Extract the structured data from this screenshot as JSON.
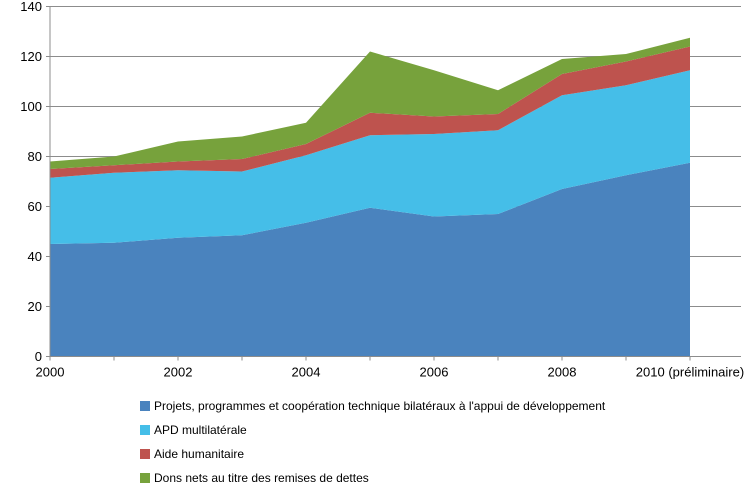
{
  "chart_data": {
    "type": "area",
    "stacked": true,
    "categories": [
      "2000",
      "2001",
      "2002",
      "2003",
      "2004",
      "2005",
      "2006",
      "2007",
      "2008",
      "2009",
      "2010 (préliminaire)"
    ],
    "xtick_labels": [
      "2000",
      "2002",
      "2004",
      "2006",
      "2008",
      "2010 (préliminaire)"
    ],
    "xtick_positions": [
      0,
      2,
      4,
      6,
      8,
      10
    ],
    "series": [
      {
        "name": "Projets, programmes et coopération technique bilatéraux à l'appui de développement",
        "color": "#4A83BE",
        "values": [
          45,
          45.5,
          47.5,
          48.5,
          53.5,
          59.5,
          56,
          57,
          67,
          72.5,
          77.5
        ]
      },
      {
        "name": "APD multilatérale",
        "color": "#45BEE8",
        "values": [
          26.5,
          28,
          27,
          25.5,
          27,
          29,
          33,
          33.5,
          37.5,
          36,
          37
        ]
      },
      {
        "name": "Aide humanitaire",
        "color": "#BE534E",
        "values": [
          3.5,
          3,
          3.5,
          5,
          4.5,
          9,
          7,
          6.5,
          8.5,
          9.5,
          9.5
        ]
      },
      {
        "name": "Dons nets au titre des remises de dettes",
        "color": "#77A23C",
        "values": [
          3,
          3.5,
          8,
          9,
          8.5,
          24.5,
          18.5,
          9.5,
          6,
          3,
          3.5
        ]
      }
    ],
    "stacked_totals": [
      78,
      80,
      86,
      88,
      93.5,
      122,
      114.5,
      106.5,
      119,
      121,
      127.5
    ],
    "ylim": [
      0,
      140
    ],
    "ytick_step": 20,
    "grid": true,
    "legend_position": "bottom-left"
  },
  "colors": {
    "gridline": "#8C8C8C",
    "axis": "#8C8C8C",
    "tick_text": "#000000",
    "background": "#FFFFFF"
  }
}
